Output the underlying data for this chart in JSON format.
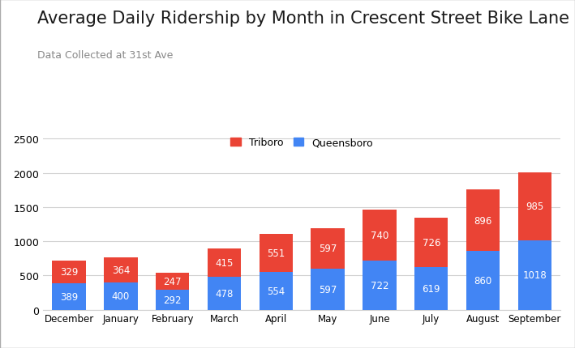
{
  "title": "Average Daily Ridership by Month in Crescent Street Bike Lane",
  "subtitle": "Data Collected at 31st Ave",
  "categories": [
    "December",
    "January",
    "February",
    "March",
    "April",
    "May",
    "June",
    "July",
    "August",
    "September"
  ],
  "queensboro": [
    389,
    400,
    292,
    478,
    554,
    597,
    722,
    619,
    860,
    1018
  ],
  "triboro": [
    329,
    364,
    247,
    415,
    551,
    597,
    740,
    726,
    896,
    985
  ],
  "queensboro_color": "#4285F4",
  "triboro_color": "#EA4335",
  "background_color": "#ffffff",
  "grid_color": "#d0d0d0",
  "ylim": [
    0,
    2600
  ],
  "yticks": [
    0,
    500,
    1000,
    1500,
    2000,
    2500
  ],
  "title_fontsize": 15,
  "subtitle_fontsize": 9,
  "legend_labels": [
    "Triboro",
    "Queensboro"
  ],
  "text_color_white": "#ffffff",
  "border_color": "#aaaaaa"
}
